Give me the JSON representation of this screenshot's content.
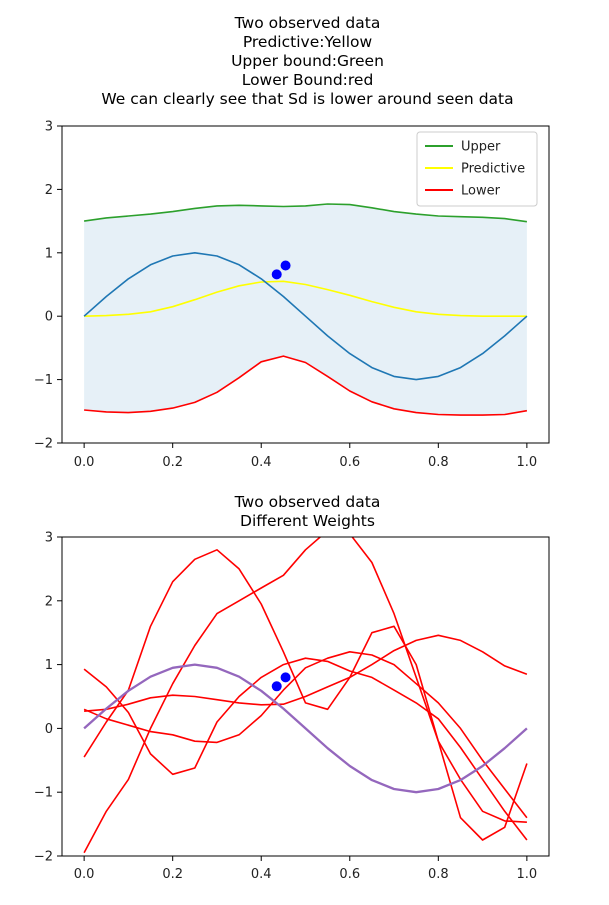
{
  "chart_data": [
    {
      "type": "line",
      "title_lines": [
        "Two observed data",
        "Predictive:Yellow",
        "Upper bound:Green",
        "Lower Bound:red",
        "We can clearly see that Sd is lower around seen data"
      ],
      "xlabel": "",
      "ylabel": "",
      "xlim": [
        -0.05,
        1.05
      ],
      "ylim": [
        -2,
        3
      ],
      "xticks": [
        0.0,
        0.2,
        0.4,
        0.6,
        0.8,
        1.0
      ],
      "xtick_labels": [
        "0.0",
        "0.2",
        "0.4",
        "0.6",
        "0.8",
        "1.0"
      ],
      "yticks": [
        -2,
        -1,
        0,
        1,
        2,
        3
      ],
      "ytick_labels": [
        "−2",
        "−1",
        "0",
        "1",
        "2",
        "3"
      ],
      "grid": false,
      "legend_position": "top-right",
      "x": [
        0.0,
        0.05,
        0.1,
        0.15,
        0.2,
        0.25,
        0.3,
        0.35,
        0.4,
        0.45,
        0.5,
        0.55,
        0.6,
        0.65,
        0.7,
        0.75,
        0.8,
        0.85,
        0.9,
        0.95,
        1.0
      ],
      "series": [
        {
          "name": "Upper",
          "color": "#2ca02c",
          "legend": true,
          "values": [
            1.5,
            1.55,
            1.58,
            1.61,
            1.65,
            1.7,
            1.74,
            1.75,
            1.74,
            1.73,
            1.74,
            1.77,
            1.76,
            1.71,
            1.65,
            1.61,
            1.58,
            1.57,
            1.56,
            1.54,
            1.49
          ]
        },
        {
          "name": "Predictive",
          "color": "#ffff00",
          "legend": true,
          "values": [
            0.0,
            0.01,
            0.03,
            0.07,
            0.15,
            0.26,
            0.38,
            0.48,
            0.54,
            0.55,
            0.5,
            0.42,
            0.33,
            0.23,
            0.14,
            0.07,
            0.03,
            0.01,
            0.0,
            0.0,
            0.0
          ]
        },
        {
          "name": "Lower",
          "color": "#ff0000",
          "legend": true,
          "values": [
            -1.48,
            -1.51,
            -1.52,
            -1.5,
            -1.45,
            -1.36,
            -1.2,
            -0.97,
            -0.72,
            -0.63,
            -0.73,
            -0.95,
            -1.18,
            -1.35,
            -1.46,
            -1.52,
            -1.55,
            -1.56,
            -1.56,
            -1.55,
            -1.49
          ]
        },
        {
          "color": "#1f77b4",
          "legend": false,
          "values": [
            0.0,
            0.31,
            0.59,
            0.81,
            0.95,
            1.0,
            0.95,
            0.81,
            0.59,
            0.31,
            0.0,
            -0.31,
            -0.59,
            -0.81,
            -0.95,
            -1.0,
            -0.95,
            -0.81,
            -0.59,
            -0.31,
            0.0
          ]
        }
      ],
      "band": {
        "upper": "Upper",
        "lower": "Lower",
        "color": "#1f77b4",
        "opacity": 0.11
      },
      "scatter": {
        "color": "#0000ff",
        "x": [
          0.435,
          0.455
        ],
        "y": [
          0.66,
          0.8
        ]
      }
    },
    {
      "type": "line",
      "title_lines": [
        "Two observed data",
        "Different Weights"
      ],
      "xlabel": "",
      "ylabel": "",
      "xlim": [
        -0.05,
        1.05
      ],
      "ylim": [
        -2,
        3
      ],
      "xticks": [
        0.0,
        0.2,
        0.4,
        0.6,
        0.8,
        1.0
      ],
      "xtick_labels": [
        "0.0",
        "0.2",
        "0.4",
        "0.6",
        "0.8",
        "1.0"
      ],
      "yticks": [
        -2,
        -1,
        0,
        1,
        2,
        3
      ],
      "ytick_labels": [
        "−2",
        "−1",
        "0",
        "1",
        "2",
        "3"
      ],
      "grid": false,
      "x": [
        0.0,
        0.05,
        0.1,
        0.15,
        0.2,
        0.25,
        0.3,
        0.35,
        0.4,
        0.45,
        0.5,
        0.55,
        0.6,
        0.65,
        0.7,
        0.75,
        0.8,
        0.85,
        0.9,
        0.95,
        1.0
      ],
      "series": [
        {
          "color": "#ff0000",
          "legend": false,
          "values": [
            0.27,
            0.3,
            0.38,
            0.48,
            0.52,
            0.5,
            0.45,
            0.4,
            0.37,
            0.38,
            0.5,
            0.65,
            0.8,
            1.0,
            1.22,
            1.38,
            1.46,
            1.38,
            1.2,
            0.98,
            0.85
          ]
        },
        {
          "color": "#ff0000",
          "legend": false,
          "values": [
            0.3,
            0.15,
            0.05,
            -0.05,
            -0.1,
            -0.2,
            -0.22,
            -0.1,
            0.2,
            0.6,
            0.95,
            1.1,
            1.2,
            1.15,
            1.0,
            0.7,
            0.4,
            0.0,
            -0.5,
            -0.95,
            -1.4
          ]
        },
        {
          "color": "#ff0000",
          "legend": false,
          "values": [
            -0.45,
            0.1,
            0.6,
            1.6,
            2.3,
            2.65,
            2.8,
            2.5,
            1.95,
            1.2,
            0.4,
            0.3,
            0.8,
            1.5,
            1.6,
            1.0,
            -0.2,
            -1.4,
            -1.75,
            -1.55,
            -0.55
          ]
        },
        {
          "color": "#ff0000",
          "legend": false,
          "values": [
            -1.95,
            -1.3,
            -0.8,
            0.0,
            0.7,
            1.3,
            1.8,
            2.0,
            2.2,
            2.4,
            2.8,
            3.1,
            3.05,
            2.6,
            1.8,
            0.8,
            -0.2,
            -0.8,
            -1.3,
            -1.45,
            -1.47
          ]
        },
        {
          "color": "#ff0000",
          "legend": false,
          "values": [
            0.93,
            0.65,
            0.25,
            -0.4,
            -0.72,
            -0.62,
            0.1,
            0.5,
            0.8,
            1.0,
            1.1,
            1.05,
            0.9,
            0.8,
            0.6,
            0.4,
            0.15,
            -0.3,
            -0.8,
            -1.3,
            -1.75
          ]
        },
        {
          "color": "#9467bd",
          "legend": false,
          "width": 2.3,
          "values": [
            0.0,
            0.31,
            0.59,
            0.81,
            0.95,
            1.0,
            0.95,
            0.81,
            0.59,
            0.31,
            0.0,
            -0.31,
            -0.59,
            -0.81,
            -0.95,
            -1.0,
            -0.95,
            -0.81,
            -0.59,
            -0.31,
            0.0
          ]
        }
      ],
      "scatter": {
        "color": "#0000ff",
        "x": [
          0.435,
          0.455
        ],
        "y": [
          0.66,
          0.8
        ]
      }
    }
  ]
}
